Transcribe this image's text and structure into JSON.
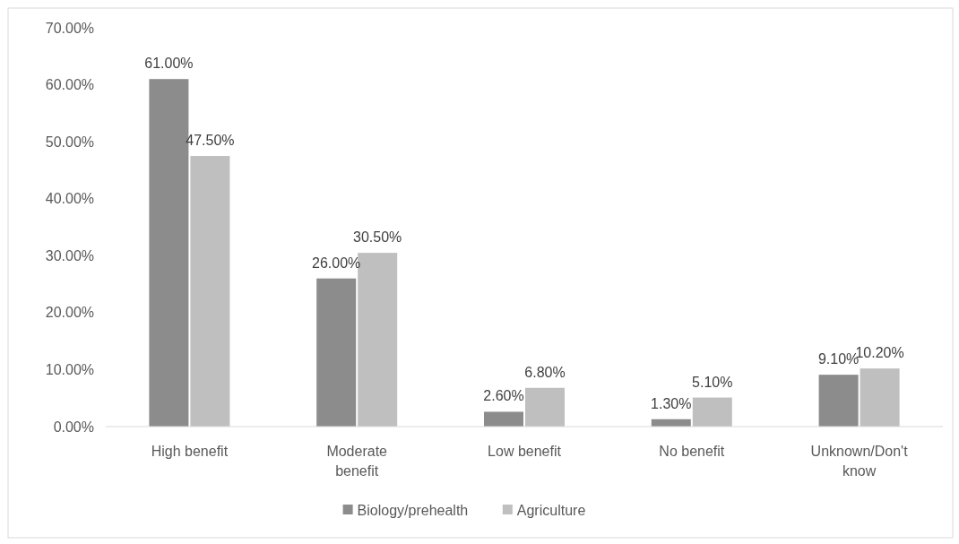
{
  "chart_data": {
    "type": "bar",
    "categories": [
      "High benefit",
      "Moderate benefit",
      "Low benefit",
      "No benefit",
      "Unknown/Don't know"
    ],
    "series": [
      {
        "name": "Biology/prehealth",
        "color": "#8c8c8c",
        "values": [
          61.0,
          26.0,
          2.6,
          1.3,
          9.1
        ],
        "value_labels": [
          "61.00%",
          "26.00%",
          "2.60%",
          "1.30%",
          "9.10%"
        ]
      },
      {
        "name": "Agriculture",
        "color": "#bfbfbf",
        "values": [
          47.5,
          30.5,
          6.8,
          5.1,
          10.2
        ],
        "value_labels": [
          "47.50%",
          "30.50%",
          "6.80%",
          "5.10%",
          "10.20%"
        ]
      }
    ],
    "ylim": [
      0,
      70
    ],
    "yticks": [
      {
        "value": 0,
        "label": "0.00%"
      },
      {
        "value": 10,
        "label": "10.00%"
      },
      {
        "value": 20,
        "label": "20.00%"
      },
      {
        "value": 30,
        "label": "30.00%"
      },
      {
        "value": 40,
        "label": "40.00%"
      },
      {
        "value": 50,
        "label": "50.00%"
      },
      {
        "value": 60,
        "label": "60.00%"
      },
      {
        "value": 70,
        "label": "70.00%"
      }
    ],
    "grid": false,
    "legend": "bottom"
  }
}
